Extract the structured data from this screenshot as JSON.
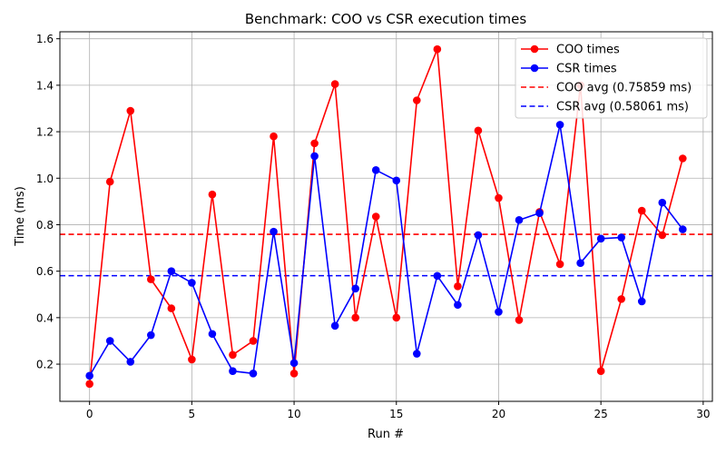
{
  "chart_data": {
    "type": "line",
    "title": "Benchmark: COO vs CSR execution times",
    "xlabel": "Run #",
    "ylabel": "Time (ms)",
    "xlim": [
      -1.45,
      30.45
    ],
    "ylim": [
      0.04,
      1.63
    ],
    "xticks": [
      0,
      5,
      10,
      15,
      20,
      25,
      30
    ],
    "yticks": [
      0.2,
      0.4,
      0.6,
      0.8,
      1.0,
      1.2,
      1.4,
      1.6
    ],
    "xtick_labels": [
      "0",
      "5",
      "10",
      "15",
      "20",
      "25",
      "30"
    ],
    "ytick_labels": [
      "0.2",
      "0.4",
      "0.6",
      "0.8",
      "1.0",
      "1.2",
      "1.4",
      "1.6"
    ],
    "grid": true,
    "legend_position": "top-right",
    "x": [
      0,
      1,
      2,
      3,
      4,
      5,
      6,
      7,
      8,
      9,
      10,
      11,
      12,
      13,
      14,
      15,
      16,
      17,
      18,
      19,
      20,
      21,
      22,
      23,
      24,
      25,
      26,
      27,
      28,
      29
    ],
    "series": [
      {
        "name": "COO times",
        "color": "#ff0000",
        "values": [
          0.115,
          0.985,
          1.29,
          0.565,
          0.44,
          0.22,
          0.93,
          0.24,
          0.3,
          1.18,
          0.16,
          1.15,
          1.405,
          0.4,
          0.835,
          0.4,
          1.335,
          1.555,
          0.535,
          1.205,
          0.915,
          0.39,
          0.855,
          0.63,
          1.4,
          0.17,
          0.48,
          0.86,
          0.755,
          1.085
        ]
      },
      {
        "name": "CSR times",
        "color": "#0000ff",
        "values": [
          0.15,
          0.3,
          0.21,
          0.325,
          0.6,
          0.55,
          0.33,
          0.17,
          0.16,
          0.77,
          0.205,
          1.095,
          0.365,
          0.525,
          1.035,
          0.99,
          0.245,
          0.58,
          0.455,
          0.755,
          0.425,
          0.82,
          0.85,
          1.23,
          0.635,
          0.74,
          0.745,
          0.47,
          0.895,
          0.78
        ]
      }
    ],
    "reference_lines": [
      {
        "name": "COO avg (0.75859 ms)",
        "color": "#ff0000",
        "value": 0.75859,
        "style": "dashed"
      },
      {
        "name": "CSR avg (0.58061 ms)",
        "color": "#0000ff",
        "value": 0.58061,
        "style": "dashed"
      }
    ]
  }
}
